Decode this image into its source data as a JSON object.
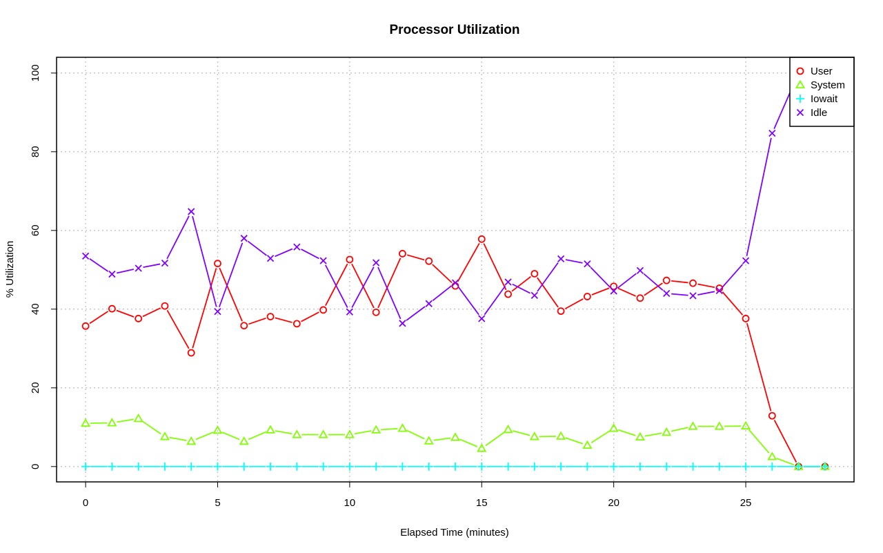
{
  "chart_data": {
    "type": "line",
    "title": "Processor Utilization",
    "xlabel": "Elapsed Time (minutes)",
    "ylabel": "% Utilization",
    "x": [
      0,
      1,
      2,
      3,
      4,
      5,
      6,
      7,
      8,
      9,
      10,
      11,
      12,
      13,
      14,
      15,
      16,
      17,
      18,
      19,
      20,
      21,
      22,
      23,
      24,
      25,
      26,
      27,
      28
    ],
    "xlim": [
      -1.1,
      29.1
    ],
    "ylim": [
      -3.9,
      104
    ],
    "xticks": [
      0,
      5,
      10,
      15,
      20,
      25
    ],
    "yticks": [
      0,
      20,
      40,
      60,
      80,
      100
    ],
    "grid": true,
    "legend_position": "top-right",
    "series": [
      {
        "name": "User",
        "color": "#ff0000",
        "marker": "circle",
        "values": [
          35.7,
          40.1,
          37.6,
          40.8,
          28.9,
          51.6,
          35.8,
          38.1,
          36.3,
          39.8,
          52.6,
          39.2,
          54.1,
          52.2,
          45.9,
          57.8,
          43.8,
          49.0,
          39.5,
          43.2,
          45.8,
          42.8,
          47.3,
          46.6,
          45.3,
          37.6,
          12.9,
          0,
          0
        ]
      },
      {
        "name": "System",
        "color": "#80ff00",
        "marker": "triangle",
        "values": [
          11.0,
          11.1,
          12.2,
          7.6,
          6.4,
          9.2,
          6.4,
          9.3,
          8.1,
          8.1,
          8.1,
          9.3,
          9.7,
          6.5,
          7.4,
          4.6,
          9.4,
          7.6,
          7.7,
          5.4,
          9.7,
          7.5,
          8.7,
          10.2,
          10.2,
          10.3,
          2.5,
          0,
          0
        ]
      },
      {
        "name": "Iowait",
        "color": "#00ffff",
        "marker": "plus",
        "values": [
          0,
          0,
          0,
          0,
          0,
          0,
          0,
          0,
          0,
          0,
          0,
          0,
          0,
          0,
          0,
          0,
          0,
          0,
          0,
          0,
          0,
          0,
          0,
          0,
          0,
          0,
          0,
          0,
          0
        ]
      },
      {
        "name": "Idle",
        "color": "#8000ff",
        "marker": "cross",
        "values": [
          53.5,
          48.9,
          50.4,
          51.7,
          64.8,
          39.4,
          58.0,
          52.9,
          55.8,
          52.3,
          39.3,
          51.8,
          36.4,
          41.4,
          46.7,
          37.6,
          46.9,
          43.5,
          52.8,
          51.5,
          44.6,
          49.8,
          44.0,
          43.4,
          44.7,
          52.3,
          84.7,
          100,
          100
        ]
      }
    ]
  }
}
